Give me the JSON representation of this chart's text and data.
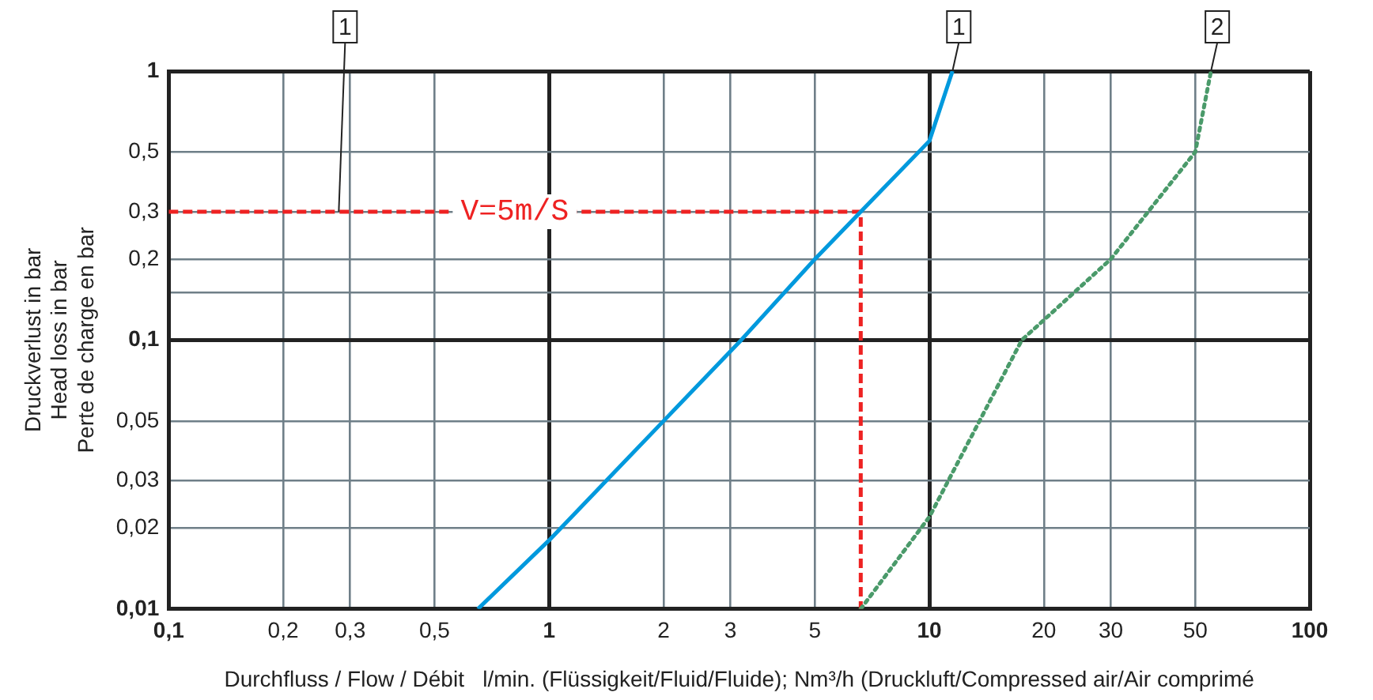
{
  "chart_data": {
    "type": "line",
    "xlabel": "Durchfluss / Flow / Débit   l/min. (Flüssigkeit/Fluid/Fluide); Nm³/h (Druckluft/Compressed air/Air comprimé",
    "ylabel": "Druckverlust in bar\nHead loss in bar\nPerte de charge en bar",
    "log": "xy",
    "grid": true,
    "legend": false,
    "marker": "none",
    "xlim": [
      0.1,
      100
    ],
    "ylim": [
      0.01,
      1
    ],
    "xticks": [
      {
        "value": 0.1,
        "label": "0,1"
      },
      {
        "value": 0.2,
        "label": "0,2"
      },
      {
        "value": 0.3,
        "label": "0,3"
      },
      {
        "value": 0.5,
        "label": "0,5"
      },
      1,
      2,
      3,
      5,
      10,
      20,
      30,
      50,
      100
    ],
    "yticks": [
      {
        "value": 0.01,
        "label": "0,01"
      },
      {
        "value": 0.02,
        "label": "0,02"
      },
      {
        "value": 0.03,
        "label": "0,03"
      },
      {
        "value": 0.05,
        "label": "0,05"
      },
      {
        "value": 0.1,
        "label": "0,1"
      },
      {
        "value": 0.15,
        "label": null
      },
      {
        "value": 0.2,
        "label": "0,2"
      },
      {
        "value": 0.3,
        "label": "0,3"
      },
      {
        "value": 0.5,
        "label": "0,5"
      },
      1
    ],
    "series": [
      {
        "color": "#0099dd",
        "line_style": "solid",
        "x": [
          0.65,
          1,
          2,
          3.2,
          5,
          6.6,
          10,
          11.5
        ],
        "values": [
          0.01,
          0.018,
          0.05,
          0.1,
          0.2,
          0.3,
          0.55,
          1
        ]
      },
      {
        "color": "#4a9a6a",
        "line_style": "dotted",
        "x": [
          6.6,
          10,
          17.5,
          30,
          50,
          55
        ],
        "values": [
          0.01,
          0.022,
          0.1,
          0.2,
          0.5,
          1
        ]
      },
      {
        "name": "V=5m/S",
        "color": "#ee2222",
        "line_style": "dashed",
        "x": [
          0.1,
          6.6,
          6.6
        ],
        "values": [
          0.3,
          0.3,
          0.01
        ]
      }
    ],
    "annotations": [
      {
        "text": "1",
        "x": 0.28,
        "y": 0.3
      },
      {
        "text": "1",
        "x": 11.5,
        "y": 1
      },
      {
        "text": "2",
        "x": 55,
        "y": 1
      }
    ]
  }
}
